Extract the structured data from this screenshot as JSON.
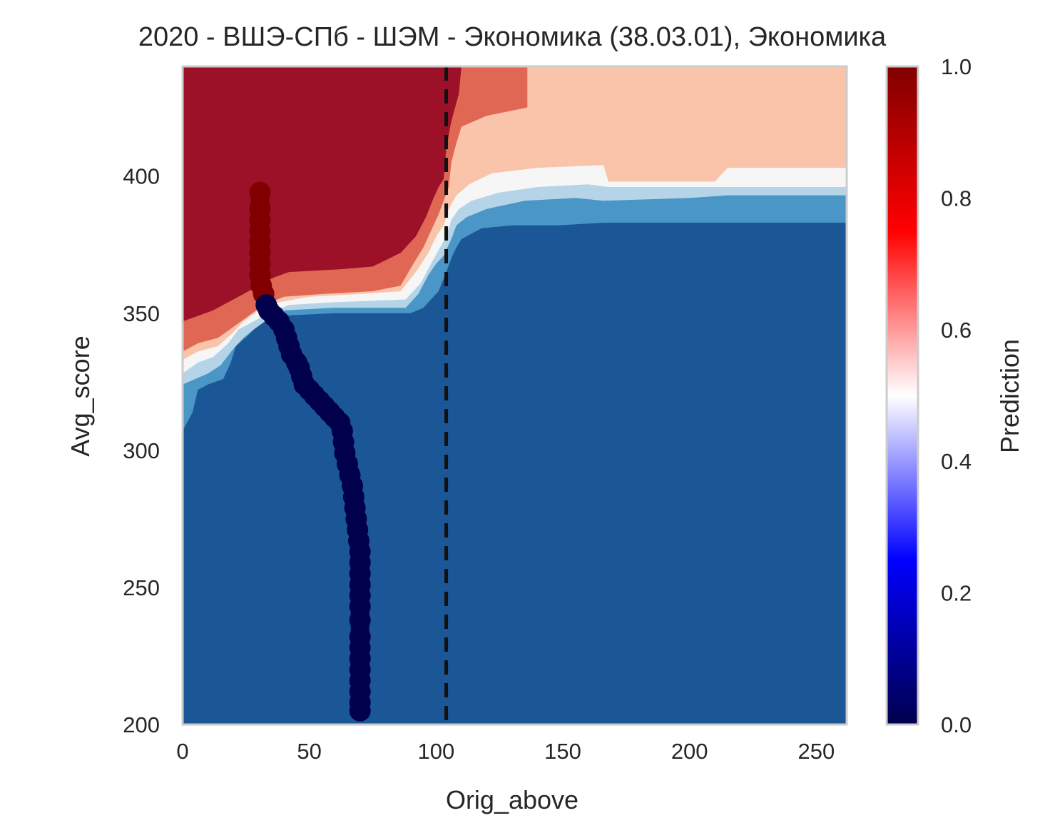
{
  "chart_data": {
    "type": "heatmap",
    "title": "2020 - ВШЭ-СПб - ШЭМ - Экономика (38.03.01), Экономика",
    "xlabel": "Orig_above",
    "ylabel": "Avg_score",
    "xlim": [
      0,
      262
    ],
    "ylim": [
      200,
      440
    ],
    "x_ticks": [
      0,
      50,
      100,
      150,
      200,
      250
    ],
    "y_ticks": [
      200,
      250,
      300,
      350,
      400
    ],
    "grid": false,
    "colorbar": {
      "label": "Prediction",
      "range": [
        0,
        1
      ],
      "ticks": [
        "0.0",
        "0.2",
        "0.4",
        "0.6",
        "0.8",
        "1.0"
      ],
      "colors": [
        "#00004c",
        "#0000ff",
        "#ffffff",
        "#ff0000",
        "#800000"
      ]
    },
    "contour_levels": [
      {
        "level": "0.0-0.2",
        "color": "#1b5796"
      },
      {
        "level": "0.2-0.3",
        "color": "#4a96c6"
      },
      {
        "level": "0.3-0.4",
        "color": "#b5d4e8"
      },
      {
        "level": "0.4-0.6",
        "color": "#f6f6f6"
      },
      {
        "level": "0.6-0.7",
        "color": "#f9c4aa"
      },
      {
        "level": "0.7-0.8",
        "color": "#df6753"
      },
      {
        "level": "0.8-1.0",
        "color": "#9c1127"
      }
    ],
    "vline": {
      "x": 104,
      "style": "dashed",
      "color": "#111111"
    },
    "series": [
      {
        "color": "#800000",
        "points": [
          [
            30.5,
            394
          ],
          [
            30.5,
            388
          ],
          [
            30.5,
            384
          ],
          [
            30.5,
            380
          ],
          [
            30.5,
            376
          ],
          [
            30.5,
            372
          ],
          [
            30.5,
            368
          ],
          [
            30.5,
            364
          ],
          [
            31,
            360
          ],
          [
            32,
            357
          ]
        ]
      },
      {
        "color": "#00004c",
        "points": [
          [
            33,
            353
          ],
          [
            34,
            351
          ],
          [
            36,
            349
          ],
          [
            38,
            347
          ],
          [
            40,
            344
          ],
          [
            41,
            341
          ],
          [
            42,
            338
          ],
          [
            43,
            335
          ],
          [
            45,
            332
          ],
          [
            46,
            330
          ],
          [
            47,
            327
          ],
          [
            48,
            324
          ],
          [
            50,
            322
          ],
          [
            52,
            320
          ],
          [
            54,
            318
          ],
          [
            56,
            316
          ],
          [
            58,
            314
          ],
          [
            60,
            312
          ],
          [
            62,
            310
          ],
          [
            63,
            307
          ],
          [
            63.5,
            303
          ],
          [
            64,
            299
          ],
          [
            65,
            295
          ],
          [
            66,
            291
          ],
          [
            67,
            287
          ],
          [
            67.5,
            283
          ],
          [
            68,
            279
          ],
          [
            68.5,
            275
          ],
          [
            69,
            271
          ],
          [
            69.5,
            267
          ],
          [
            70,
            263
          ],
          [
            70,
            259
          ],
          [
            70,
            255
          ],
          [
            70,
            251
          ],
          [
            70,
            247
          ],
          [
            70,
            243
          ],
          [
            70,
            238
          ],
          [
            70,
            232
          ],
          [
            70,
            228
          ],
          [
            70,
            224
          ],
          [
            70,
            220
          ],
          [
            70,
            216
          ],
          [
            70,
            212
          ],
          [
            70,
            208
          ],
          [
            70,
            205
          ]
        ]
      }
    ]
  }
}
